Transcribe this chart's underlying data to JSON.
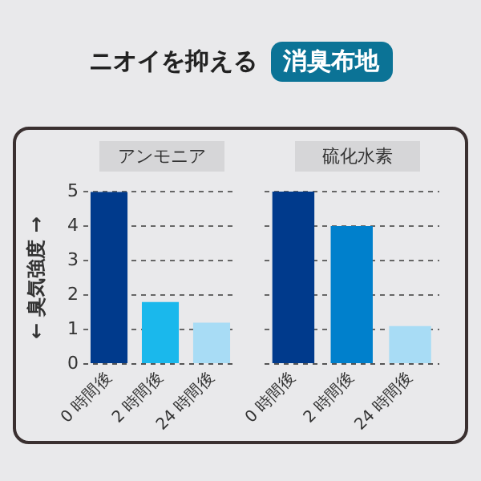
{
  "chart_data": [
    {
      "type": "bar",
      "title": "アンモニア",
      "annotations": [
        "ニオイを抑える",
        "消臭布地"
      ],
      "ylabel": "← 臭気強度 →",
      "categories": [
        "0 時間後",
        "2 時間後",
        "24 時間後"
      ],
      "values": [
        5,
        1.8,
        1.2
      ],
      "colors": [
        "#003a8c",
        "#1ab8ec",
        "#a8dcf5"
      ],
      "ylim": [
        0,
        5
      ],
      "yticks": [
        0,
        1,
        2,
        3,
        4,
        5
      ],
      "grid": "y"
    },
    {
      "type": "bar",
      "title": "硫化水素",
      "categories": [
        "0 時間後",
        "2 時間後",
        "24 時間後"
      ],
      "values": [
        5,
        4,
        1.1
      ],
      "colors": [
        "#003a8c",
        "#0080cc",
        "#a8dcf5"
      ],
      "ylim": [
        0,
        5
      ],
      "yticks": [
        0,
        1,
        2,
        3,
        4,
        5
      ],
      "grid": "y",
      "tick_labels": "x"
    }
  ]
}
